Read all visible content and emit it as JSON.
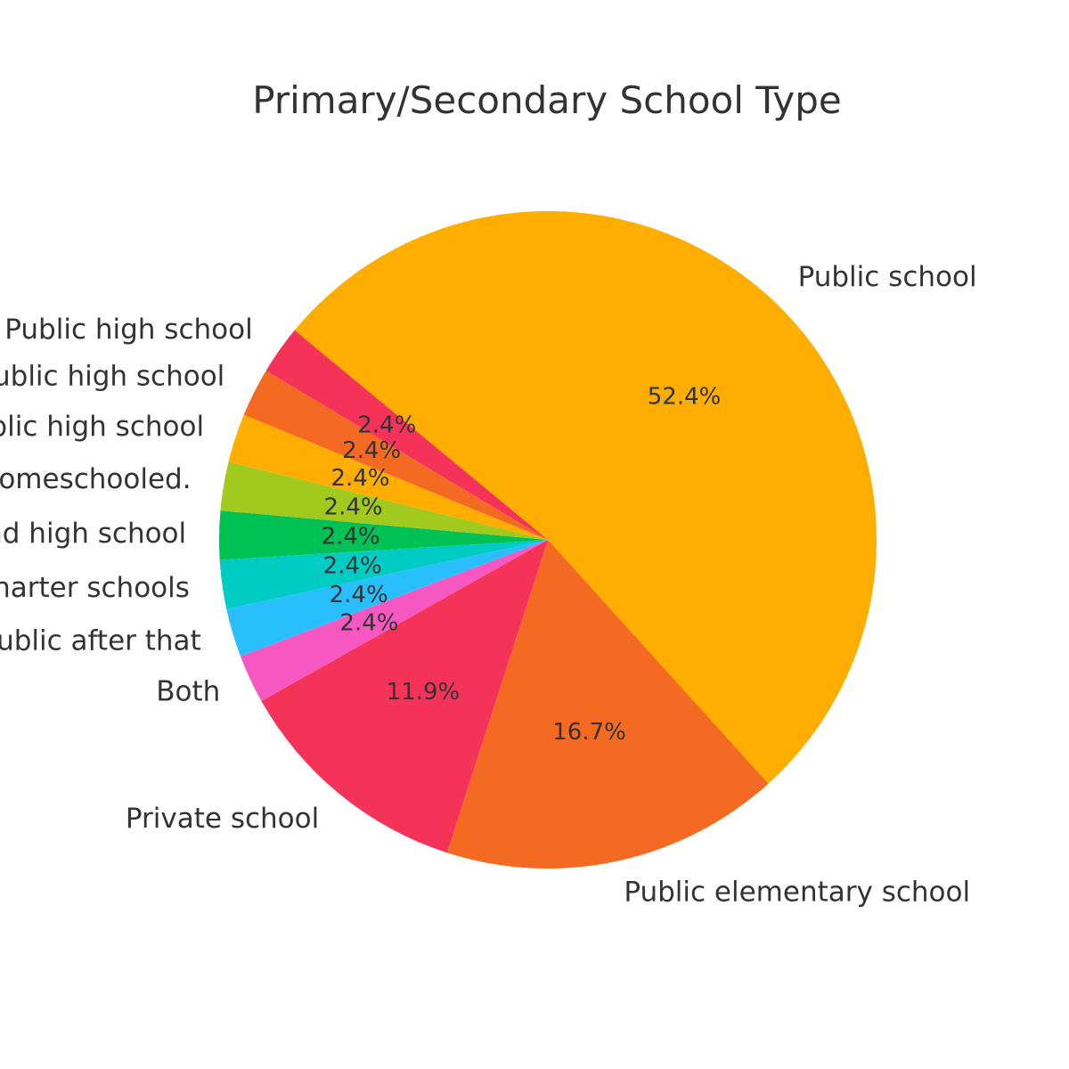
{
  "chart_data": {
    "type": "pie",
    "title": "Primary/Secondary School Type",
    "slices": [
      {
        "label": "Public school",
        "value": 52.4,
        "pct_label": "52.4%",
        "color": "#FFAE00"
      },
      {
        "label": "Public elementary school",
        "value": 16.7,
        "pct_label": "16.7%",
        "color": "#F46A22"
      },
      {
        "label": "Private school",
        "value": 11.9,
        "pct_label": "11.9%",
        "color": "#F53358"
      },
      {
        "label": "Both",
        "value": 2.4,
        "pct_label": "2.4%",
        "color": "#F757C0"
      },
      {
        "label": "private elementary public after that",
        "value": 2.4,
        "pct_label": "2.4%",
        "color": "#29BFFF"
      },
      {
        "label": "Homeschooling, and Charter schools",
        "value": 2.4,
        "pct_label": "2.4%",
        "color": "#00CCC4"
      },
      {
        "label": "private middle and high school",
        "value": 2.4,
        "pct_label": "2.4%",
        "color": "#00C254"
      },
      {
        "label": "onward I was homeschooled.",
        "value": 2.4,
        "pct_label": "2.4%",
        "color": "#A1C91E"
      },
      {
        "label": "school, Public high school",
        "value": 2.4,
        "pct_label": "2.4%",
        "color": "#FFAE00"
      },
      {
        "label": "Public high school",
        "value": 2.4,
        "pct_label": "2.4%",
        "color": "#F46A22"
      },
      {
        "label": ", Public high school",
        "value": 2.4,
        "pct_label": "2.4%",
        "color": "#F53358"
      }
    ]
  }
}
